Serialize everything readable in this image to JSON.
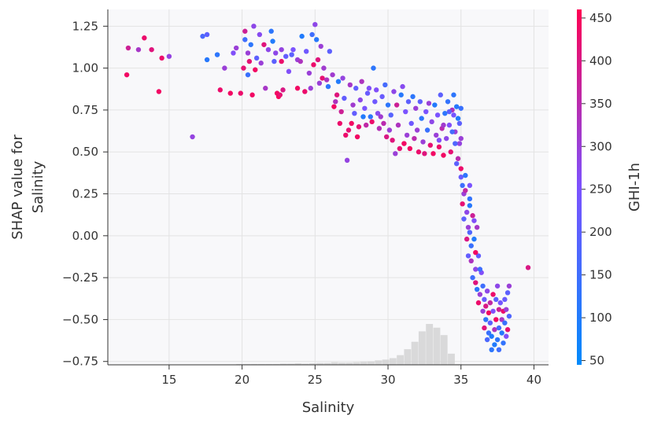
{
  "chart_data": {
    "type": "scatter",
    "title": "",
    "xlabel": "Salinity",
    "ylabel_lines": [
      "SHAP value for",
      "Salinity"
    ],
    "xlim": [
      10.8,
      41.0
    ],
    "ylim": [
      -0.77,
      1.35
    ],
    "xticks": [
      15,
      20,
      25,
      30,
      35,
      40
    ],
    "xtick_labels": [
      "15",
      "20",
      "25",
      "30",
      "35",
      "40"
    ],
    "yticks": [
      -0.75,
      -0.5,
      -0.25,
      0.0,
      0.25,
      0.5,
      0.75,
      1.0,
      1.25
    ],
    "ytick_labels": [
      "−0.75",
      "−0.50",
      "−0.25",
      "0.00",
      "0.25",
      "0.50",
      "0.75",
      "1.00",
      "1.25"
    ],
    "grid": true,
    "colorbar": {
      "label": "GHI-1h",
      "range": [
        45,
        460
      ],
      "ticks": [
        50,
        100,
        150,
        200,
        250,
        300,
        350,
        400,
        450
      ],
      "tick_labels": [
        "50",
        "100",
        "150",
        "200",
        "250",
        "300",
        "350",
        "400",
        "450"
      ],
      "colormap": [
        "#008afb",
        "#7c52ff",
        "#ff0052"
      ]
    },
    "histogram": {
      "bin_start": 11.6,
      "bin_width": 0.5,
      "counts": [
        1,
        0,
        0,
        1,
        0,
        1,
        1,
        1,
        0,
        0,
        1,
        1,
        1,
        1,
        1,
        1,
        2,
        2,
        2,
        2,
        2,
        2,
        3,
        3,
        4,
        3,
        4,
        5,
        5,
        7,
        6,
        6,
        7,
        8,
        9,
        12,
        14,
        18,
        26,
        42,
        62,
        90,
        110,
        100,
        80,
        30,
        2
      ],
      "color": "#d3d3d3"
    },
    "points": [
      [
        12.2,
        1.12,
        380
      ],
      [
        12.1,
        0.96,
        440
      ],
      [
        12.9,
        1.11,
        320
      ],
      [
        13.3,
        1.18,
        430
      ],
      [
        13.8,
        1.11,
        410
      ],
      [
        14.3,
        0.86,
        440
      ],
      [
        14.5,
        1.06,
        430
      ],
      [
        15.0,
        1.07,
        290
      ],
      [
        16.6,
        0.59,
        290
      ],
      [
        17.3,
        1.19,
        170
      ],
      [
        17.6,
        1.2,
        200
      ],
      [
        17.6,
        1.05,
        110
      ],
      [
        18.3,
        1.08,
        120
      ],
      [
        18.5,
        0.87,
        430
      ],
      [
        18.8,
        1.0,
        300
      ],
      [
        19.2,
        0.85,
        440
      ],
      [
        19.4,
        1.09,
        260
      ],
      [
        19.6,
        1.12,
        300
      ],
      [
        19.9,
        0.85,
        430
      ],
      [
        20.1,
        1.0,
        420
      ],
      [
        20.2,
        1.22,
        380
      ],
      [
        20.2,
        1.17,
        150
      ],
      [
        20.4,
        1.09,
        300
      ],
      [
        20.4,
        0.96,
        140
      ],
      [
        20.5,
        1.04,
        420
      ],
      [
        20.6,
        1.14,
        120
      ],
      [
        20.7,
        0.84,
        440
      ],
      [
        20.8,
        1.25,
        280
      ],
      [
        20.9,
        0.99,
        440
      ],
      [
        21.0,
        1.06,
        200
      ],
      [
        21.2,
        1.2,
        270
      ],
      [
        21.3,
        1.03,
        300
      ],
      [
        21.5,
        1.14,
        410
      ],
      [
        21.6,
        0.88,
        320
      ],
      [
        21.8,
        1.11,
        280
      ],
      [
        22.0,
        1.22,
        120
      ],
      [
        22.1,
        1.16,
        100
      ],
      [
        22.2,
        1.04,
        200
      ],
      [
        22.3,
        1.09,
        280
      ],
      [
        22.4,
        0.85,
        440
      ],
      [
        22.5,
        0.83,
        450
      ],
      [
        22.6,
        0.84,
        420
      ],
      [
        22.7,
        1.04,
        430
      ],
      [
        22.7,
        1.11,
        290
      ],
      [
        22.8,
        0.87,
        400
      ],
      [
        23.0,
        1.07,
        210
      ],
      [
        23.2,
        0.98,
        260
      ],
      [
        23.4,
        1.08,
        200
      ],
      [
        23.5,
        1.11,
        250
      ],
      [
        23.8,
        1.05,
        300
      ],
      [
        23.8,
        0.88,
        440
      ],
      [
        24.0,
        1.04,
        330
      ],
      [
        24.1,
        1.19,
        100
      ],
      [
        24.3,
        0.86,
        430
      ],
      [
        24.4,
        1.1,
        230
      ],
      [
        24.6,
        0.97,
        300
      ],
      [
        24.7,
        0.88,
        300
      ],
      [
        24.8,
        1.2,
        150
      ],
      [
        24.9,
        1.02,
        430
      ],
      [
        25.0,
        1.26,
        280
      ],
      [
        25.1,
        1.17,
        110
      ],
      [
        25.2,
        1.05,
        410
      ],
      [
        25.3,
        0.91,
        300
      ],
      [
        25.4,
        1.13,
        300
      ],
      [
        25.5,
        0.94,
        420
      ],
      [
        25.6,
        1.0,
        310
      ],
      [
        25.8,
        0.93,
        330
      ],
      [
        25.9,
        0.89,
        120
      ],
      [
        26.0,
        1.1,
        200
      ],
      [
        26.2,
        0.96,
        310
      ],
      [
        26.3,
        0.77,
        440
      ],
      [
        26.4,
        0.8,
        330
      ],
      [
        26.5,
        0.84,
        410
      ],
      [
        26.6,
        0.92,
        100
      ],
      [
        26.7,
        0.67,
        430
      ],
      [
        26.8,
        0.74,
        380
      ],
      [
        26.9,
        0.94,
        290
      ],
      [
        27.0,
        0.82,
        210
      ],
      [
        27.1,
        0.6,
        430
      ],
      [
        27.2,
        0.45,
        290
      ],
      [
        27.3,
        0.63,
        420
      ],
      [
        27.4,
        0.9,
        320
      ],
      [
        27.5,
        0.67,
        440
      ],
      [
        27.6,
        0.78,
        310
      ],
      [
        27.7,
        0.73,
        210
      ],
      [
        27.8,
        0.88,
        210
      ],
      [
        27.9,
        0.59,
        440
      ],
      [
        28.0,
        0.65,
        420
      ],
      [
        28.1,
        0.81,
        280
      ],
      [
        28.2,
        0.92,
        330
      ],
      [
        28.3,
        0.71,
        100
      ],
      [
        28.4,
        0.76,
        250
      ],
      [
        28.5,
        0.66,
        360
      ],
      [
        28.6,
        0.85,
        220
      ],
      [
        28.7,
        0.88,
        260
      ],
      [
        28.8,
        0.71,
        120
      ],
      [
        28.9,
        0.68,
        430
      ],
      [
        29.0,
        1.0,
        120
      ],
      [
        29.1,
        0.8,
        230
      ],
      [
        29.2,
        0.87,
        260
      ],
      [
        29.3,
        0.73,
        270
      ],
      [
        29.4,
        0.64,
        340
      ],
      [
        29.5,
        0.71,
        310
      ],
      [
        29.6,
        0.83,
        220
      ],
      [
        29.7,
        0.67,
        350
      ],
      [
        29.8,
        0.9,
        160
      ],
      [
        29.9,
        0.59,
        400
      ],
      [
        30.0,
        0.78,
        120
      ],
      [
        30.1,
        0.63,
        300
      ],
      [
        30.2,
        0.72,
        190
      ],
      [
        30.3,
        0.57,
        410
      ],
      [
        30.4,
        0.86,
        280
      ],
      [
        30.5,
        0.49,
        300
      ],
      [
        30.6,
        0.78,
        380
      ],
      [
        30.7,
        0.66,
        330
      ],
      [
        30.8,
        0.52,
        420
      ],
      [
        30.9,
        0.84,
        110
      ],
      [
        31.0,
        0.89,
        270
      ],
      [
        31.1,
        0.55,
        440
      ],
      [
        31.2,
        0.74,
        250
      ],
      [
        31.3,
        0.6,
        300
      ],
      [
        31.4,
        0.8,
        200
      ],
      [
        31.5,
        0.52,
        440
      ],
      [
        31.6,
        0.67,
        230
      ],
      [
        31.7,
        0.83,
        120
      ],
      [
        31.8,
        0.58,
        350
      ],
      [
        31.9,
        0.76,
        300
      ],
      [
        32.0,
        0.63,
        300
      ],
      [
        32.1,
        0.5,
        430
      ],
      [
        32.2,
        0.8,
        200
      ],
      [
        32.3,
        0.7,
        120
      ],
      [
        32.4,
        0.56,
        300
      ],
      [
        32.5,
        0.49,
        410
      ],
      [
        32.6,
        0.74,
        250
      ],
      [
        32.7,
        0.63,
        140
      ],
      [
        32.8,
        0.79,
        300
      ],
      [
        32.9,
        0.54,
        420
      ],
      [
        33.0,
        0.68,
        280
      ],
      [
        33.1,
        0.49,
        440
      ],
      [
        33.2,
        0.78,
        100
      ],
      [
        33.3,
        0.6,
        300
      ],
      [
        33.4,
        0.72,
        250
      ],
      [
        33.5,
        0.53,
        430
      ],
      [
        33.6,
        0.84,
        200
      ],
      [
        33.7,
        0.64,
        350
      ],
      [
        33.8,
        0.48,
        440
      ],
      [
        33.9,
        0.73,
        120
      ],
      [
        34.0,
        0.58,
        280
      ],
      [
        34.1,
        0.8,
        130
      ],
      [
        34.2,
        0.66,
        260
      ],
      [
        34.3,
        0.5,
        420
      ],
      [
        34.4,
        0.75,
        330
      ],
      [
        34.5,
        0.84,
        120
      ],
      [
        34.6,
        0.62,
        300
      ],
      [
        34.7,
        0.43,
        200
      ],
      [
        34.8,
        0.7,
        100
      ],
      [
        34.9,
        0.55,
        290
      ],
      [
        35.0,
        0.76,
        140
      ],
      [
        35.0,
        0.4,
        430
      ],
      [
        34.4,
        0.62,
        160
      ],
      [
        34.6,
        0.55,
        180
      ],
      [
        34.8,
        0.46,
        350
      ],
      [
        33.8,
        0.66,
        310
      ],
      [
        34.2,
        0.74,
        200
      ],
      [
        33.5,
        0.57,
        260
      ],
      [
        34.9,
        0.67,
        200
      ],
      [
        35.0,
        0.58,
        300
      ],
      [
        34.7,
        0.77,
        110
      ],
      [
        34.5,
        0.72,
        240
      ],
      [
        35.0,
        0.35,
        220
      ],
      [
        35.1,
        0.3,
        150
      ],
      [
        35.2,
        0.25,
        300
      ],
      [
        35.1,
        0.19,
        420
      ],
      [
        35.3,
        0.36,
        120
      ],
      [
        35.4,
        0.14,
        280
      ],
      [
        35.2,
        0.1,
        200
      ],
      [
        35.6,
        0.22,
        130
      ],
      [
        35.5,
        0.05,
        300
      ],
      [
        35.4,
        -0.02,
        400
      ],
      [
        35.6,
        0.3,
        250
      ],
      [
        35.7,
        -0.06,
        140
      ],
      [
        35.8,
        0.12,
        380
      ],
      [
        35.5,
        -0.12,
        210
      ],
      [
        35.7,
        -0.15,
        330
      ],
      [
        35.9,
        -0.02,
        100
      ],
      [
        36.0,
        -0.2,
        280
      ],
      [
        35.8,
        -0.25,
        150
      ],
      [
        36.0,
        -0.28,
        410
      ],
      [
        36.1,
        0.05,
        320
      ],
      [
        35.3,
        0.27,
        360
      ],
      [
        35.6,
        0.18,
        110
      ],
      [
        35.9,
        0.09,
        260
      ],
      [
        35.6,
        0.02,
        180
      ],
      [
        36.2,
        -0.12,
        210
      ],
      [
        36.1,
        -0.32,
        120
      ],
      [
        36.3,
        -0.35,
        300
      ],
      [
        36.2,
        -0.4,
        430
      ],
      [
        36.4,
        -0.22,
        260
      ],
      [
        36.0,
        -0.1,
        440
      ],
      [
        36.5,
        -0.3,
        150
      ],
      [
        36.5,
        -0.45,
        300
      ],
      [
        36.6,
        -0.38,
        220
      ],
      [
        36.7,
        -0.5,
        120
      ],
      [
        36.6,
        -0.55,
        410
      ],
      [
        36.8,
        -0.33,
        280
      ],
      [
        36.9,
        -0.46,
        440
      ],
      [
        36.9,
        -0.58,
        140
      ],
      [
        37.0,
        -0.4,
        360
      ],
      [
        37.0,
        -0.52,
        200
      ],
      [
        37.1,
        -0.6,
        100
      ],
      [
        37.2,
        -0.35,
        430
      ],
      [
        37.2,
        -0.45,
        260
      ],
      [
        37.3,
        -0.56,
        330
      ],
      [
        37.3,
        -0.65,
        100
      ],
      [
        37.4,
        -0.38,
        200
      ],
      [
        37.4,
        -0.5,
        440
      ],
      [
        37.5,
        -0.3,
        280
      ],
      [
        37.5,
        -0.62,
        120
      ],
      [
        37.6,
        -0.44,
        380
      ],
      [
        37.6,
        -0.55,
        160
      ],
      [
        37.7,
        -0.4,
        240
      ],
      [
        37.8,
        -0.5,
        320
      ],
      [
        37.8,
        -0.58,
        110
      ],
      [
        37.9,
        -0.45,
        430
      ],
      [
        38.0,
        -0.38,
        220
      ],
      [
        38.0,
        -0.52,
        140
      ],
      [
        38.1,
        -0.44,
        300
      ],
      [
        38.2,
        -0.34,
        200
      ],
      [
        38.2,
        -0.56,
        420
      ],
      [
        38.3,
        -0.48,
        180
      ],
      [
        38.3,
        -0.3,
        300
      ],
      [
        38.1,
        -0.6,
        260
      ],
      [
        37.9,
        -0.64,
        130
      ],
      [
        36.8,
        -0.62,
        170
      ],
      [
        37.1,
        -0.68,
        120
      ],
      [
        37.6,
        -0.68,
        150
      ],
      [
        39.6,
        -0.19,
        400
      ],
      [
        36.3,
        -0.2,
        150
      ],
      [
        36.7,
        -0.42,
        400
      ]
    ]
  }
}
